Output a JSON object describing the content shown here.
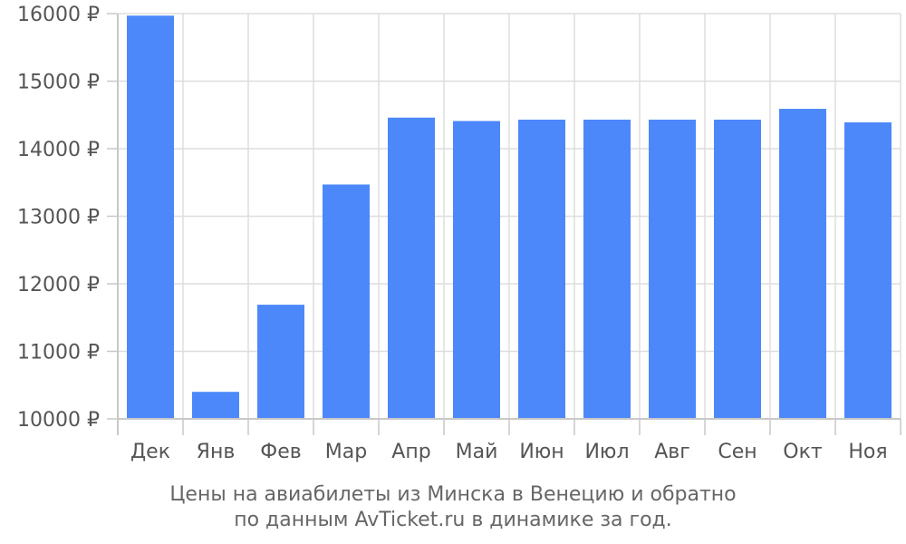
{
  "chart_data": {
    "type": "bar",
    "categories": [
      "Дек",
      "Янв",
      "Фев",
      "Мар",
      "Апр",
      "Май",
      "Июн",
      "Июл",
      "Авг",
      "Сен",
      "Окт",
      "Ноя"
    ],
    "values": [
      15970,
      10400,
      11690,
      13470,
      14460,
      14410,
      14430,
      14430,
      14430,
      14430,
      14590,
      14390
    ],
    "ylim": [
      10000,
      16000
    ],
    "yticks": [
      10000,
      11000,
      12000,
      13000,
      14000,
      15000,
      16000
    ],
    "ytick_suffix": " ₽",
    "grid": true,
    "bar_color": "#4d88fa",
    "grid_color": "#dddddd",
    "title_lines": [
      "Цены на авиабилеты из Минска в Венецию и обратно",
      "по данным AvTicket.ru в динамике за год."
    ]
  }
}
